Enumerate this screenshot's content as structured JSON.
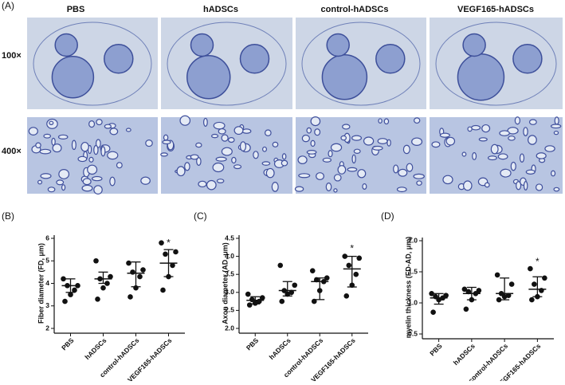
{
  "figure": {
    "panel": "(A)",
    "columns": [
      "PBS",
      "hADSCs",
      "control-hADSCs",
      "VEGF165-hADSCs"
    ],
    "rows": [
      "100×",
      "400×"
    ]
  },
  "chart_data": [
    {
      "type": "dot",
      "panel": "(B)",
      "y_label": "Fiber diameter (FD, μm)",
      "color": "#111111",
      "categories": [
        "PBS",
        "hADSCs",
        "control-hADSCs",
        "VEGF165-hADSCs"
      ],
      "points": [
        [
          4.2,
          3.9,
          3.9,
          3.7,
          3.5,
          3.2
        ],
        [
          5.0,
          4.3,
          4.2,
          4.0,
          3.8,
          3.3
        ],
        [
          4.9,
          4.6,
          4.5,
          4.3,
          3.8,
          3.4
        ],
        [
          5.8,
          5.4,
          5.3,
          4.8,
          4.3,
          3.7
        ]
      ],
      "center": [
        3.9,
        4.2,
        4.45,
        4.9
      ],
      "lower": [
        3.6,
        4.0,
        3.85,
        4.3
      ],
      "upper": [
        4.2,
        4.5,
        4.95,
        5.5
      ],
      "annotations": [
        {
          "category": "VEGF165-hADSCs",
          "y": 5.85,
          "text": "*"
        }
      ],
      "ylim": [
        2,
        6
      ],
      "yticks": [
        2,
        3,
        4,
        5,
        6
      ]
    },
    {
      "type": "dot",
      "panel": "(C)",
      "y_label": "Axon diameter (AD, μm)",
      "color": "#111111",
      "categories": [
        "PBS",
        "hADSCs",
        "control-hADSCs",
        "VEGF165-hADSCs"
      ],
      "points": [
        [
          2.95,
          2.85,
          2.8,
          2.75,
          2.7,
          2.65
        ],
        [
          3.75,
          3.2,
          3.05,
          3.0,
          2.95,
          2.75
        ],
        [
          3.6,
          3.4,
          3.35,
          3.3,
          3.05,
          2.75
        ],
        [
          4.0,
          3.95,
          3.75,
          3.5,
          3.2,
          2.9
        ]
      ],
      "center": [
        2.78,
        3.05,
        3.3,
        3.65
      ],
      "lower": [
        2.68,
        2.9,
        2.8,
        3.15
      ],
      "upper": [
        2.88,
        3.3,
        3.4,
        4.0
      ],
      "annotations": [
        {
          "category": "VEGF165-hADSCs",
          "y": 4.25,
          "text": "*"
        }
      ],
      "ylim": [
        2.0,
        4.5
      ],
      "yticks": [
        {
          "value": 2,
          "label": "2.0"
        },
        2.5,
        {
          "value": 3,
          "label": "3.0"
        },
        3.5,
        {
          "value": 4,
          "label": "4.0"
        },
        4.5
      ]
    },
    {
      "type": "dot",
      "panel": "(D)",
      "y_label": "myelin thickness (FD-AD, μm)",
      "color": "#111111",
      "categories": [
        "PBS",
        "hADSCs",
        "control-hADSCs",
        "VEGF165-hADSCs"
      ],
      "points": [
        [
          1.15,
          1.12,
          1.1,
          1.08,
          1.05,
          0.85
        ],
        [
          1.22,
          1.2,
          1.18,
          1.15,
          1.05,
          0.9
        ],
        [
          1.45,
          1.3,
          1.15,
          1.12,
          1.1,
          1.05
        ],
        [
          1.55,
          1.4,
          1.3,
          1.2,
          1.1,
          1.05
        ]
      ],
      "center": [
        1.08,
        1.15,
        1.15,
        1.22
      ],
      "lower": [
        0.98,
        1.05,
        1.05,
        1.1
      ],
      "upper": [
        1.15,
        1.25,
        1.4,
        1.42
      ],
      "annotations": [
        {
          "category": "VEGF165-hADSCs",
          "y": 1.68,
          "text": "*"
        }
      ],
      "ylim": [
        0.5,
        2.0
      ],
      "yticks": [
        0.5,
        {
          "value": 1,
          "label": "1.0"
        },
        1.5,
        {
          "value": 2,
          "label": "2.0"
        }
      ]
    }
  ]
}
